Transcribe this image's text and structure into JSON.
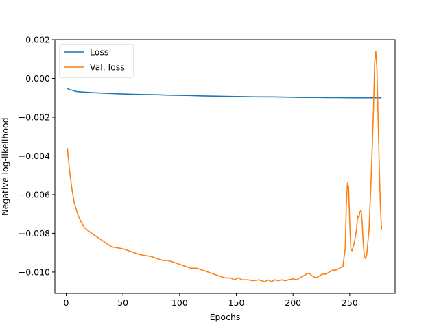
{
  "chart_data": {
    "type": "line",
    "title": "",
    "xlabel": "Epochs",
    "ylabel": "Negative log-likelihood",
    "xlim": [
      -10,
      290
    ],
    "ylim": [
      -0.0111,
      0.002
    ],
    "xticks": [
      0,
      50,
      100,
      150,
      200,
      250
    ],
    "xtick_labels": [
      "0",
      "50",
      "100",
      "150",
      "200",
      "250"
    ],
    "yticks": [
      0.002,
      0.0,
      -0.002,
      -0.004,
      -0.006,
      -0.008,
      -0.01
    ],
    "ytick_labels": [
      "0.002",
      "0.000",
      "−0.002",
      "−0.004",
      "−0.006",
      "−0.008",
      "−0.010"
    ],
    "grid": false,
    "legend_position": "upper-left",
    "series": [
      {
        "name": "Loss",
        "color": "#1f77b4",
        "points": [
          [
            1,
            -0.00052
          ],
          [
            3,
            -0.00058
          ],
          [
            5,
            -0.0006
          ],
          [
            8,
            -0.00066
          ],
          [
            10,
            -0.00068
          ],
          [
            15,
            -0.0007
          ],
          [
            20,
            -0.00072
          ],
          [
            30,
            -0.00075
          ],
          [
            40,
            -0.00078
          ],
          [
            50,
            -0.0008
          ],
          [
            60,
            -0.00082
          ],
          [
            70,
            -0.00083
          ],
          [
            80,
            -0.00084
          ],
          [
            90,
            -0.00086
          ],
          [
            100,
            -0.00087
          ],
          [
            110,
            -0.00088
          ],
          [
            120,
            -0.0009
          ],
          [
            130,
            -0.00091
          ],
          [
            140,
            -0.00092
          ],
          [
            150,
            -0.00093
          ],
          [
            160,
            -0.00094
          ],
          [
            170,
            -0.00095
          ],
          [
            180,
            -0.00095
          ],
          [
            190,
            -0.00096
          ],
          [
            200,
            -0.00097
          ],
          [
            210,
            -0.00098
          ],
          [
            220,
            -0.00098
          ],
          [
            230,
            -0.00099
          ],
          [
            240,
            -0.00099
          ],
          [
            250,
            -0.001
          ],
          [
            260,
            -0.001
          ],
          [
            270,
            -0.001
          ],
          [
            278,
            -0.001
          ]
        ]
      },
      {
        "name": "Val. loss",
        "color": "#ff7f0e",
        "points": [
          [
            1,
            -0.0036
          ],
          [
            3,
            -0.0048
          ],
          [
            5,
            -0.0057
          ],
          [
            7,
            -0.0064
          ],
          [
            10,
            -0.007
          ],
          [
            13,
            -0.0074
          ],
          [
            16,
            -0.0077
          ],
          [
            20,
            -0.0079
          ],
          [
            25,
            -0.0081
          ],
          [
            30,
            -0.0083
          ],
          [
            35,
            -0.0085
          ],
          [
            40,
            -0.0087
          ],
          [
            45,
            -0.00875
          ],
          [
            50,
            -0.0088
          ],
          [
            55,
            -0.0089
          ],
          [
            60,
            -0.009
          ],
          [
            65,
            -0.0091
          ],
          [
            70,
            -0.00915
          ],
          [
            75,
            -0.0092
          ],
          [
            80,
            -0.0093
          ],
          [
            85,
            -0.0094
          ],
          [
            90,
            -0.0094
          ],
          [
            95,
            -0.0095
          ],
          [
            100,
            -0.0096
          ],
          [
            105,
            -0.0097
          ],
          [
            110,
            -0.0098
          ],
          [
            115,
            -0.0098
          ],
          [
            120,
            -0.0099
          ],
          [
            125,
            -0.01
          ],
          [
            130,
            -0.0101
          ],
          [
            135,
            -0.0102
          ],
          [
            140,
            -0.0103
          ],
          [
            145,
            -0.0103
          ],
          [
            148,
            -0.0104
          ],
          [
            152,
            -0.0103
          ],
          [
            155,
            -0.0104
          ],
          [
            160,
            -0.0104
          ],
          [
            165,
            -0.01045
          ],
          [
            170,
            -0.0104
          ],
          [
            175,
            -0.0105
          ],
          [
            178,
            -0.0104
          ],
          [
            181,
            -0.0105
          ],
          [
            184,
            -0.0104
          ],
          [
            187,
            -0.01045
          ],
          [
            190,
            -0.0104
          ],
          [
            193,
            -0.01045
          ],
          [
            196,
            -0.0104
          ],
          [
            200,
            -0.01035
          ],
          [
            203,
            -0.0104
          ],
          [
            206,
            -0.0103
          ],
          [
            209,
            -0.0102
          ],
          [
            212,
            -0.0101
          ],
          [
            214,
            -0.01005
          ],
          [
            217,
            -0.0102
          ],
          [
            220,
            -0.0103
          ],
          [
            223,
            -0.0102
          ],
          [
            226,
            -0.0101
          ],
          [
            229,
            -0.0101
          ],
          [
            232,
            -0.01
          ],
          [
            235,
            -0.0099
          ],
          [
            238,
            -0.0099
          ],
          [
            241,
            -0.0098
          ],
          [
            244,
            -0.0097
          ],
          [
            246,
            -0.0088
          ],
          [
            247,
            -0.0065
          ],
          [
            248,
            -0.0054
          ],
          [
            249,
            -0.0056
          ],
          [
            250,
            -0.0075
          ],
          [
            251,
            -0.0088
          ],
          [
            252,
            -0.0089
          ],
          [
            254,
            -0.0085
          ],
          [
            256,
            -0.0078
          ],
          [
            257,
            -0.0071
          ],
          [
            258,
            -0.0072
          ],
          [
            259,
            -0.0069
          ],
          [
            260,
            -0.0068
          ],
          [
            261,
            -0.0075
          ],
          [
            262,
            -0.0086
          ],
          [
            263,
            -0.0092
          ],
          [
            264,
            -0.0093
          ],
          [
            265,
            -0.0091
          ],
          [
            267,
            -0.0078
          ],
          [
            269,
            -0.005
          ],
          [
            271,
            -0.0015
          ],
          [
            272,
            0.0008
          ],
          [
            273,
            0.0014
          ],
          [
            274,
            0.0005
          ],
          [
            275,
            -0.002
          ],
          [
            276,
            -0.0045
          ],
          [
            277,
            -0.0065
          ],
          [
            278,
            -0.0078
          ]
        ]
      }
    ]
  }
}
